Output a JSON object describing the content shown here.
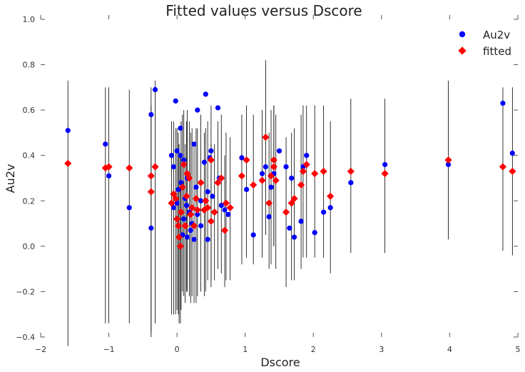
{
  "chart_data": {
    "type": "scatter",
    "title": "Fitted values versus Dscore",
    "xlabel": "Dscore",
    "ylabel": "Au2v",
    "xlim": [
      -2,
      5
    ],
    "ylim": [
      -0.4,
      1.0
    ],
    "xticks": [
      "−2",
      "−1",
      "0",
      "1",
      "2",
      "3",
      "4",
      "5"
    ],
    "yticks": [
      "−0.4",
      "−0.2",
      "0.0",
      "0.2",
      "0.4",
      "0.6",
      "0.8",
      "1.0"
    ],
    "grid": false,
    "legend_position": "top-right",
    "colors": {
      "Au2v": "#0000ff",
      "fitted": "#ff0000",
      "errorbar": "#000000"
    },
    "series": [
      {
        "name": "Au2v",
        "marker": "circle",
        "points": [
          [
            -1.6,
            0.51
          ],
          [
            -1.05,
            0.45
          ],
          [
            -1.0,
            0.31
          ],
          [
            -0.7,
            0.17
          ],
          [
            -0.38,
            0.58
          ],
          [
            -0.32,
            0.69
          ],
          [
            -0.38,
            0.31
          ],
          [
            -0.38,
            0.08
          ],
          [
            -0.08,
            0.4
          ],
          [
            -0.05,
            0.35
          ],
          [
            -0.02,
            0.64
          ],
          [
            0.0,
            0.42
          ],
          [
            0.05,
            0.52
          ],
          [
            0.02,
            0.25
          ],
          [
            0.05,
            0.4
          ],
          [
            0.1,
            0.38
          ],
          [
            0.12,
            0.21
          ],
          [
            0.15,
            0.3
          ],
          [
            0.18,
            0.15
          ],
          [
            0.22,
            0.1
          ],
          [
            0.25,
            0.45
          ],
          [
            0.28,
            0.26
          ],
          [
            0.3,
            0.6
          ],
          [
            0.35,
            0.2
          ],
          [
            0.4,
            0.37
          ],
          [
            0.42,
            0.67
          ],
          [
            0.45,
            0.24
          ],
          [
            0.48,
            0.39
          ],
          [
            0.5,
            0.42
          ],
          [
            0.52,
            0.22
          ],
          [
            0.55,
            0.15
          ],
          [
            0.6,
            0.61
          ],
          [
            0.62,
            0.3
          ],
          [
            0.65,
            0.18
          ],
          [
            0.7,
            0.16
          ],
          [
            0.75,
            0.14
          ],
          [
            0.08,
            0.05
          ],
          [
            0.15,
            0.04
          ],
          [
            0.25,
            0.03
          ],
          [
            0.45,
            0.03
          ],
          [
            0.2,
            0.07
          ],
          [
            0.1,
            0.12
          ],
          [
            0.3,
            0.14
          ],
          [
            0.35,
            0.09
          ],
          [
            0.0,
            0.19
          ],
          [
            -0.05,
            0.17
          ],
          [
            0.06,
            0.28
          ],
          [
            0.14,
            0.18
          ],
          [
            0.95,
            0.39
          ],
          [
            1.02,
            0.25
          ],
          [
            1.12,
            0.05
          ],
          [
            1.25,
            0.32
          ],
          [
            1.3,
            0.35
          ],
          [
            1.35,
            0.13
          ],
          [
            1.38,
            0.26
          ],
          [
            1.42,
            0.32
          ],
          [
            1.5,
            0.42
          ],
          [
            1.6,
            0.35
          ],
          [
            1.65,
            0.08
          ],
          [
            1.68,
            0.3
          ],
          [
            1.72,
            0.04
          ],
          [
            1.82,
            0.11
          ],
          [
            1.85,
            0.35
          ],
          [
            1.9,
            0.4
          ],
          [
            2.02,
            0.06
          ],
          [
            2.15,
            0.15
          ],
          [
            2.25,
            0.17
          ],
          [
            2.55,
            0.28
          ],
          [
            3.05,
            0.36
          ],
          [
            3.98,
            0.36
          ],
          [
            4.78,
            0.63
          ],
          [
            4.92,
            0.41
          ]
        ]
      },
      {
        "name": "fitted",
        "marker": "diamond",
        "points": [
          [
            -1.6,
            0.365,
            -0.44,
            0.73
          ],
          [
            -1.05,
            0.345,
            -0.34,
            0.7
          ],
          [
            -1.0,
            0.35,
            -0.34,
            0.7
          ],
          [
            -0.7,
            0.345,
            -0.34,
            0.69
          ],
          [
            -0.38,
            0.31,
            -0.38,
            0.7
          ],
          [
            -0.32,
            0.35,
            -0.34,
            0.73
          ],
          [
            -0.38,
            0.24,
            -0.4,
            0.62
          ],
          [
            -0.08,
            0.19,
            -0.3,
            0.55
          ],
          [
            -0.05,
            0.23,
            -0.3,
            0.55
          ],
          [
            -0.02,
            0.21,
            -0.3,
            0.52
          ],
          [
            0.0,
            0.12,
            -0.28,
            0.52
          ],
          [
            0.02,
            0.09,
            -0.3,
            0.5
          ],
          [
            0.03,
            0.04,
            -0.34,
            0.45
          ],
          [
            0.05,
            0.0,
            -0.34,
            0.4
          ],
          [
            0.06,
            0.15,
            -0.28,
            0.55
          ],
          [
            0.08,
            0.26,
            -0.2,
            0.58
          ],
          [
            0.1,
            0.36,
            -0.22,
            0.6
          ],
          [
            0.12,
            0.09,
            -0.25,
            0.45
          ],
          [
            0.14,
            0.22,
            -0.2,
            0.55
          ],
          [
            0.15,
            0.32,
            -0.2,
            0.6
          ],
          [
            0.18,
            0.3,
            -0.22,
            0.55
          ],
          [
            0.2,
            0.14,
            -0.25,
            0.5
          ],
          [
            0.22,
            0.17,
            -0.22,
            0.52
          ],
          [
            0.25,
            0.09,
            -0.25,
            0.45
          ],
          [
            0.28,
            0.21,
            -0.25,
            0.52
          ],
          [
            0.3,
            0.16,
            -0.22,
            0.52
          ],
          [
            0.35,
            0.28,
            -0.2,
            0.58
          ],
          [
            0.4,
            0.16,
            -0.22,
            0.5
          ],
          [
            0.42,
            0.2,
            -0.2,
            0.52
          ],
          [
            0.45,
            0.17,
            -0.15,
            0.55
          ],
          [
            0.5,
            0.38,
            -0.15,
            0.62
          ],
          [
            0.5,
            0.11,
            -0.18,
            0.45
          ],
          [
            0.55,
            0.15,
            -0.15,
            0.45
          ],
          [
            0.6,
            0.28,
            -0.1,
            0.55
          ],
          [
            0.65,
            0.3,
            -0.12,
            0.58
          ],
          [
            0.7,
            0.07,
            -0.18,
            0.4
          ],
          [
            0.72,
            0.19,
            -0.15,
            0.5
          ],
          [
            0.78,
            0.17,
            -0.15,
            0.48
          ],
          [
            0.95,
            0.31,
            -0.08,
            0.58
          ],
          [
            1.02,
            0.38,
            -0.05,
            0.62
          ],
          [
            1.12,
            0.27,
            -0.08,
            0.58
          ],
          [
            1.25,
            0.29,
            -0.05,
            0.6
          ],
          [
            1.3,
            0.48,
            0.05,
            0.82
          ],
          [
            1.35,
            0.19,
            -0.1,
            0.5
          ],
          [
            1.38,
            0.31,
            -0.08,
            0.6
          ],
          [
            1.42,
            0.38,
            0.0,
            0.62
          ],
          [
            1.42,
            0.35,
            0.0,
            0.62
          ],
          [
            1.45,
            0.29,
            -0.1,
            0.58
          ],
          [
            1.6,
            0.15,
            -0.18,
            0.48
          ],
          [
            1.68,
            0.19,
            -0.15,
            0.5
          ],
          [
            1.72,
            0.21,
            -0.15,
            0.52
          ],
          [
            1.82,
            0.27,
            -0.1,
            0.58
          ],
          [
            1.85,
            0.33,
            -0.05,
            0.62
          ],
          [
            1.9,
            0.36,
            -0.05,
            0.62
          ],
          [
            2.02,
            0.32,
            -0.05,
            0.62
          ],
          [
            2.15,
            0.33,
            -0.05,
            0.62
          ],
          [
            2.25,
            0.22,
            -0.12,
            0.55
          ],
          [
            2.55,
            0.33,
            -0.03,
            0.65
          ],
          [
            3.05,
            0.32,
            -0.03,
            0.65
          ],
          [
            3.98,
            0.38,
            0.03,
            0.73
          ],
          [
            4.78,
            0.35,
            -0.02,
            0.7
          ],
          [
            4.92,
            0.33,
            -0.04,
            0.7
          ]
        ]
      }
    ]
  }
}
